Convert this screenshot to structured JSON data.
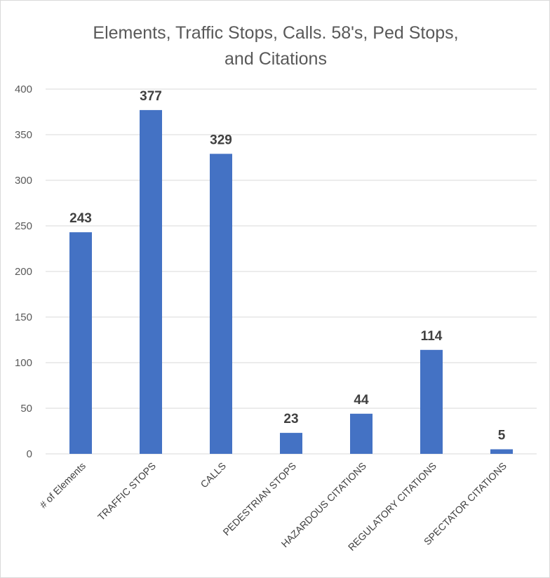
{
  "chart_data": {
    "type": "bar",
    "title": "Elements, Traffic Stops, Calls. 58's, Ped Stops, and Citations",
    "title_lines": [
      "Elements, Traffic Stops, Calls. 58's, Ped Stops,",
      "and Citations"
    ],
    "xlabel": "",
    "ylabel": "",
    "categories": [
      "# of Elements",
      "TRAFFIC STOPS",
      "CALLS",
      "PEDESTRIAN STOPS",
      "HAZARDOUS CITATIONS",
      "REGULATORY CITATIONS",
      "SPECTATOR CITATIONS"
    ],
    "values": [
      243,
      377,
      329,
      23,
      44,
      114,
      5
    ],
    "ylim": [
      0,
      400
    ],
    "yticks": [
      0,
      50,
      100,
      150,
      200,
      250,
      300,
      350,
      400
    ],
    "grid": true,
    "legend": "none",
    "data_labels": true,
    "bar_color": "#4472c4",
    "grid_color": "#d9d9d9"
  }
}
